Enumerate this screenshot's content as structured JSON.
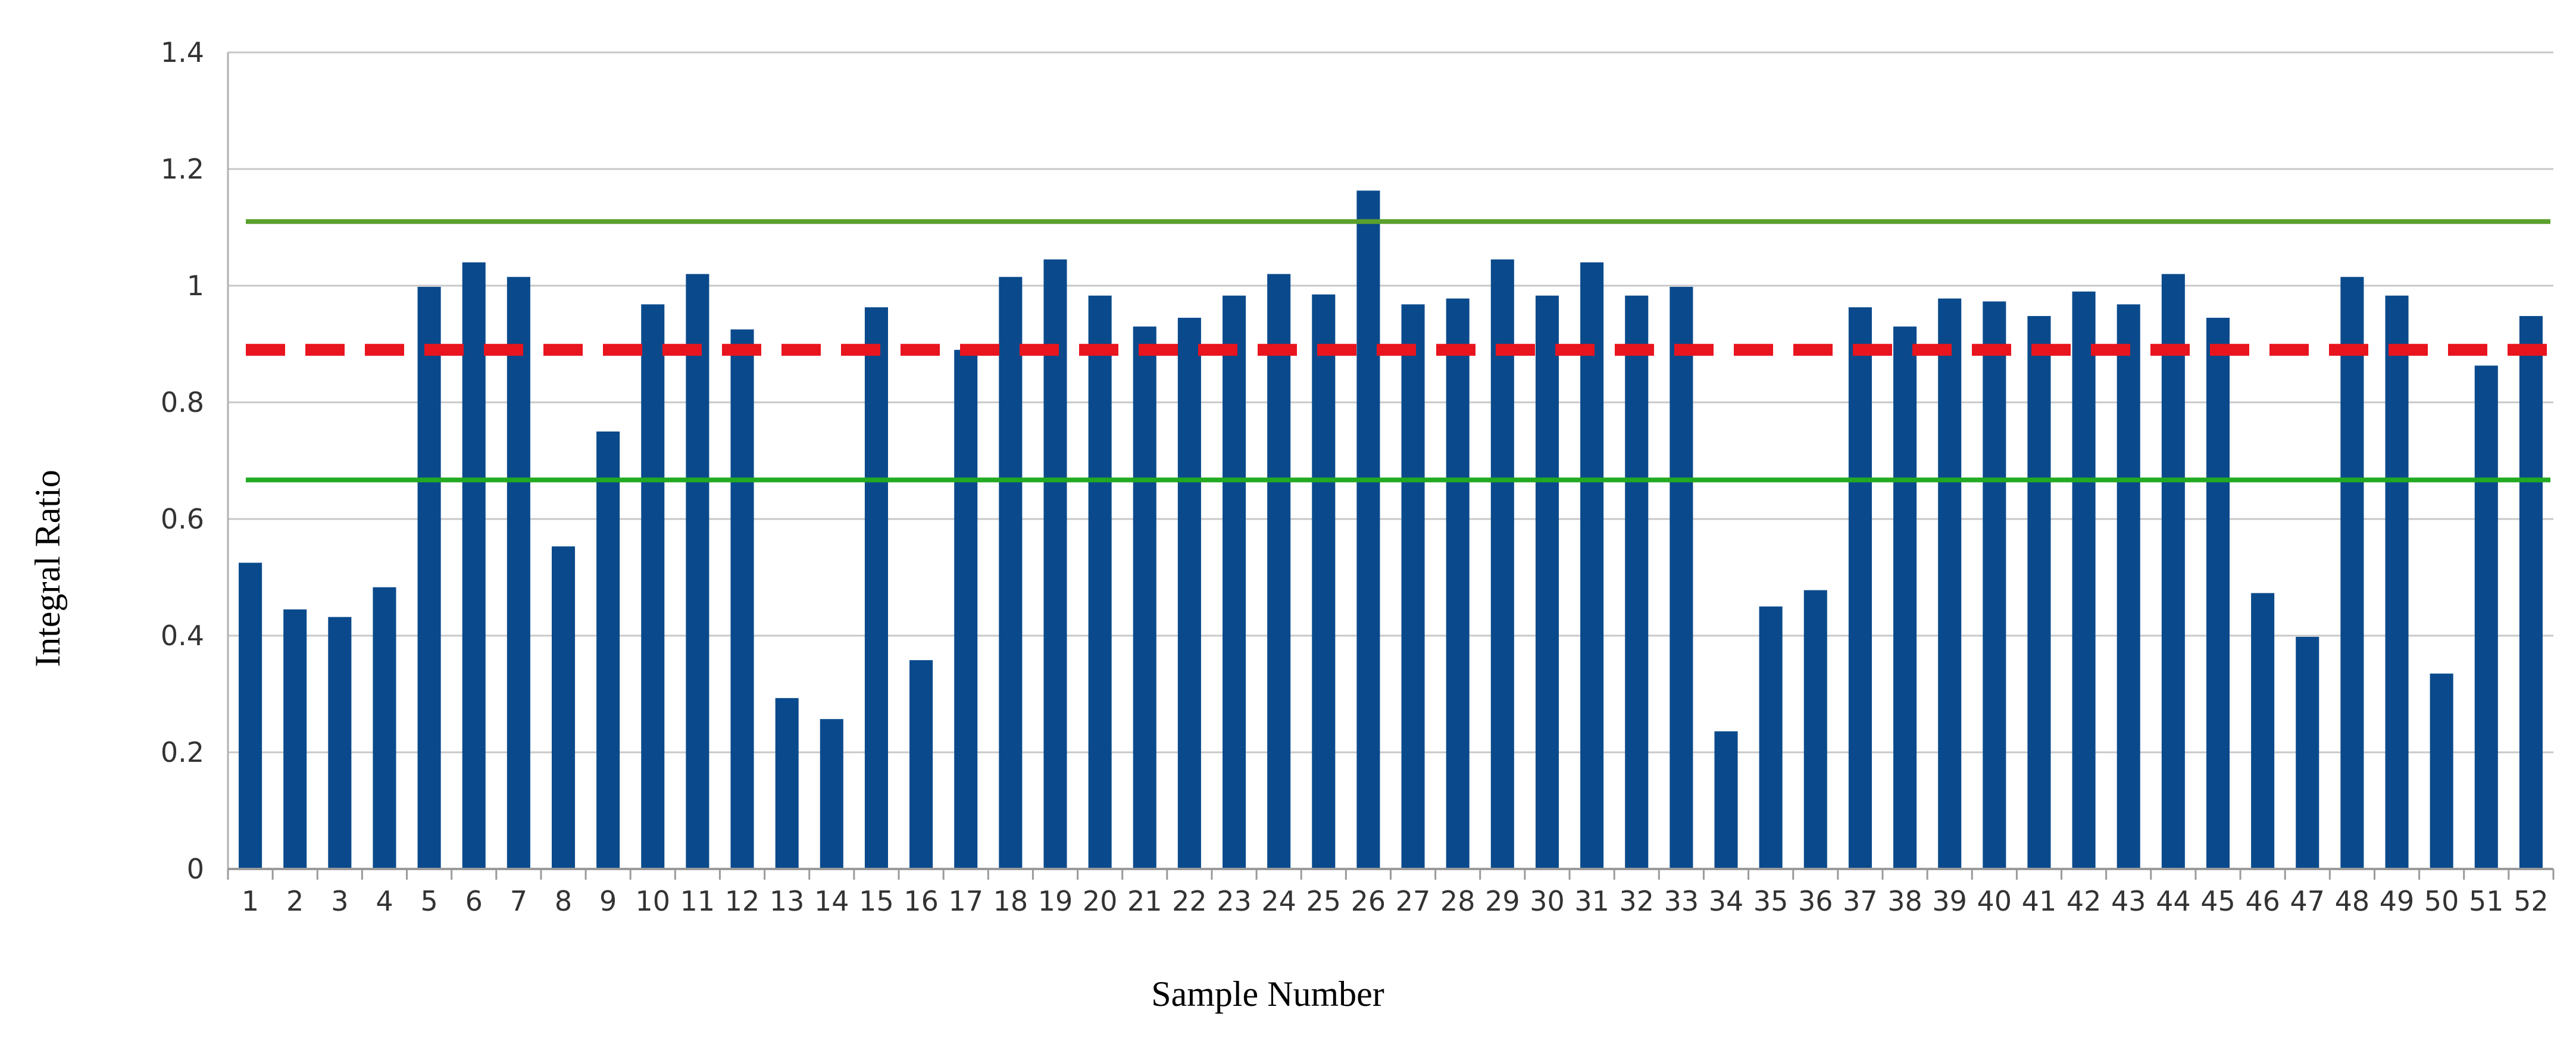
{
  "chart_data": {
    "type": "bar",
    "title": "",
    "xlabel": "Sample Number",
    "ylabel": "Integral Ratio",
    "ylim": [
      0,
      1.4
    ],
    "yticks": [
      0,
      0.2,
      0.4,
      0.6,
      0.8,
      1,
      1.2,
      1.4
    ],
    "ytick_labels": [
      "0",
      "0.2",
      "0.4",
      "0.6",
      "0.8",
      "1",
      "1.2",
      "1.4"
    ],
    "grid": true,
    "categories": [
      "1",
      "2",
      "3",
      "4",
      "5",
      "6",
      "7",
      "8",
      "9",
      "10",
      "11",
      "12",
      "13",
      "14",
      "15",
      "16",
      "17",
      "18",
      "19",
      "20",
      "21",
      "22",
      "23",
      "24",
      "25",
      "26",
      "27",
      "28",
      "29",
      "30",
      "31",
      "32",
      "33",
      "34",
      "35",
      "36",
      "37",
      "38",
      "39",
      "40",
      "41",
      "42",
      "43",
      "44",
      "45",
      "46",
      "47",
      "48",
      "49",
      "50",
      "51",
      "52"
    ],
    "values": [
      0.525,
      0.445,
      0.432,
      0.483,
      0.998,
      1.04,
      1.015,
      0.553,
      0.75,
      0.968,
      1.02,
      0.925,
      0.293,
      0.257,
      0.963,
      0.358,
      0.89,
      1.015,
      1.045,
      0.983,
      0.93,
      0.945,
      0.983,
      1.02,
      0.985,
      1.163,
      0.968,
      0.978,
      1.045,
      0.983,
      1.04,
      0.983,
      0.998,
      0.236,
      0.45,
      0.478,
      0.963,
      0.93,
      0.978,
      0.973,
      0.948,
      0.99,
      0.968,
      1.02,
      0.945,
      0.473,
      0.398,
      1.015,
      0.983,
      0.335,
      0.863,
      0.948
    ],
    "bar_color": "#0a4a8c",
    "reference_lines": [
      {
        "value": 1.11,
        "color": "#5aa02c",
        "style": "solid"
      },
      {
        "value": 0.667,
        "color": "#22aa22",
        "style": "solid"
      },
      {
        "value": 0.89,
        "color": "#e8141e",
        "style": "dashed"
      }
    ],
    "grid_color": "#c8c8c8"
  }
}
